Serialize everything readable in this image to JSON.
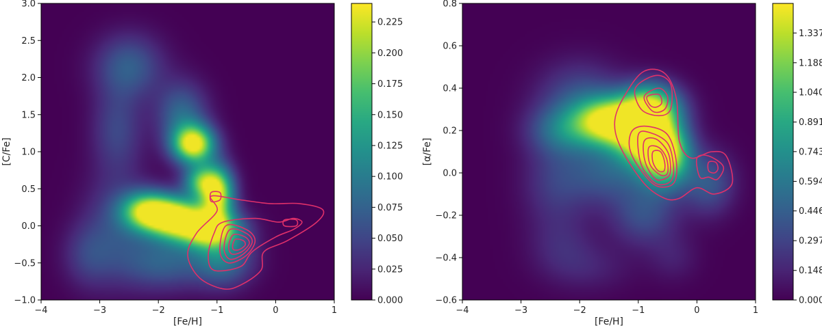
{
  "chart_data": [
    {
      "type": "heatmap",
      "title": "",
      "xlabel": "[Fe/H]",
      "ylabel": "[C/Fe]",
      "xlim": [
        -4,
        1
      ],
      "ylim": [
        -1,
        3
      ],
      "xticks": [
        "−4",
        "−3",
        "−2",
        "−1",
        "0",
        "1"
      ],
      "yticks": [
        "−1.0",
        "−0.5",
        "0.0",
        "0.5",
        "1.0",
        "1.5",
        "2.0",
        "2.5",
        "3.0"
      ],
      "colormap": "viridis",
      "colorbar": {
        "min": 0.0,
        "max": 0.24,
        "ticks": [
          0.0,
          0.025,
          0.05,
          0.075,
          0.1,
          0.125,
          0.15,
          0.175,
          0.2,
          0.225
        ],
        "tick_labels": [
          "0.000",
          "0.025",
          "0.050",
          "0.075",
          "0.100",
          "0.125",
          "0.150",
          "0.175",
          "0.200",
          "0.225"
        ]
      },
      "density_blobs": [
        {
          "x": -1.4,
          "y": 1.1,
          "sx": 0.25,
          "sy": 0.18,
          "a": 0.24
        },
        {
          "x": -1.0,
          "y": 0.45,
          "sx": 0.2,
          "sy": 0.25,
          "a": 0.23
        },
        {
          "x": -1.7,
          "y": 0.1,
          "sx": 0.35,
          "sy": 0.2,
          "a": 0.24
        },
        {
          "x": -1.1,
          "y": -0.05,
          "sx": 0.35,
          "sy": 0.18,
          "a": 0.22
        },
        {
          "x": -2.2,
          "y": 0.2,
          "sx": 0.3,
          "sy": 0.18,
          "a": 0.19
        },
        {
          "x": -1.6,
          "y": 1.5,
          "sx": 0.3,
          "sy": 0.3,
          "a": 0.08
        },
        {
          "x": -1.3,
          "y": 0.6,
          "sx": 0.2,
          "sy": 0.15,
          "a": 0.13
        },
        {
          "x": -2.5,
          "y": 2.15,
          "sx": 0.4,
          "sy": 0.3,
          "a": 0.07
        },
        {
          "x": -2.7,
          "y": 1.3,
          "sx": 0.3,
          "sy": 0.4,
          "a": 0.05
        },
        {
          "x": -2.7,
          "y": 0.0,
          "sx": 0.4,
          "sy": 0.5,
          "a": 0.05
        },
        {
          "x": -1.9,
          "y": -0.5,
          "sx": 0.5,
          "sy": 0.25,
          "a": 0.07
        },
        {
          "x": -0.9,
          "y": -0.45,
          "sx": 0.35,
          "sy": 0.25,
          "a": 0.09
        },
        {
          "x": -3.2,
          "y": -0.4,
          "sx": 0.3,
          "sy": 0.3,
          "a": 0.04
        }
      ],
      "contours": [
        [
          [
            -1.1,
            0.4
          ],
          [
            -0.6,
            0.35
          ],
          [
            -0.1,
            0.3
          ],
          [
            0.4,
            0.3
          ],
          [
            0.8,
            0.22
          ],
          [
            0.7,
            0.05
          ],
          [
            0.2,
            -0.2
          ],
          [
            -0.2,
            -0.35
          ],
          [
            -0.25,
            -0.6
          ],
          [
            -0.6,
            -0.8
          ],
          [
            -0.9,
            -0.85
          ],
          [
            -1.3,
            -0.7
          ],
          [
            -1.5,
            -0.4
          ],
          [
            -1.35,
            -0.1
          ],
          [
            -1.0,
            0.2
          ]
        ],
        [
          [
            -1.1,
            0.45
          ],
          [
            -0.95,
            0.45
          ],
          [
            -0.95,
            0.35
          ],
          [
            -1.1,
            0.33
          ]
        ],
        [
          [
            -0.9,
            0.05
          ],
          [
            -0.35,
            0.1
          ],
          [
            0.05,
            0.05
          ],
          [
            0.3,
            0.1
          ],
          [
            0.45,
            0.05
          ],
          [
            0.3,
            -0.05
          ],
          [
            0.0,
            -0.15
          ],
          [
            -0.4,
            -0.35
          ],
          [
            -0.6,
            -0.55
          ],
          [
            -1.05,
            -0.6
          ],
          [
            -1.15,
            -0.4
          ],
          [
            -1.05,
            -0.1
          ]
        ],
        [
          [
            0.15,
            0.08
          ],
          [
            0.35,
            0.08
          ],
          [
            0.35,
            0.0
          ],
          [
            0.15,
            0.0
          ]
        ],
        [
          [
            -0.85,
            0.0
          ],
          [
            -0.5,
            -0.05
          ],
          [
            -0.35,
            -0.2
          ],
          [
            -0.5,
            -0.4
          ],
          [
            -0.8,
            -0.5
          ],
          [
            -0.95,
            -0.35
          ]
        ],
        [
          [
            -0.78,
            -0.05
          ],
          [
            -0.5,
            -0.1
          ],
          [
            -0.4,
            -0.22
          ],
          [
            -0.55,
            -0.38
          ],
          [
            -0.78,
            -0.45
          ],
          [
            -0.88,
            -0.3
          ]
        ],
        [
          [
            -0.72,
            -0.12
          ],
          [
            -0.52,
            -0.15
          ],
          [
            -0.45,
            -0.24
          ],
          [
            -0.58,
            -0.35
          ],
          [
            -0.75,
            -0.38
          ],
          [
            -0.8,
            -0.27
          ]
        ],
        [
          [
            -0.68,
            -0.18
          ],
          [
            -0.55,
            -0.2
          ],
          [
            -0.52,
            -0.26
          ],
          [
            -0.62,
            -0.32
          ],
          [
            -0.72,
            -0.32
          ],
          [
            -0.73,
            -0.25
          ]
        ]
      ],
      "contour_color": "#e0306a"
    },
    {
      "type": "heatmap",
      "title": "",
      "xlabel": "[Fe/H]",
      "ylabel": "[α/Fe]",
      "xlim": [
        -4,
        1
      ],
      "ylim": [
        -0.6,
        0.8
      ],
      "xticks": [
        "−4",
        "−3",
        "−2",
        "−1",
        "0",
        "1"
      ],
      "yticks": [
        "−0.6",
        "−0.4",
        "−0.2",
        "0.0",
        "0.2",
        "0.4",
        "0.6",
        "0.8"
      ],
      "colormap": "viridis",
      "colorbar": {
        "min": 0.0,
        "max": 1.485,
        "ticks": [
          0.0,
          0.148,
          0.297,
          0.446,
          0.594,
          0.743,
          0.891,
          1.04,
          1.188,
          1.337
        ],
        "tick_labels": [
          "0.000",
          "0.148",
          "0.297",
          "0.446",
          "0.594",
          "0.743",
          "0.891",
          "1.040",
          "1.188",
          "1.337"
        ]
      },
      "density_blobs": [
        {
          "x": -1.5,
          "y": 0.24,
          "sx": 0.4,
          "sy": 0.08,
          "a": 1.4
        },
        {
          "x": -0.8,
          "y": 0.3,
          "sx": 0.35,
          "sy": 0.08,
          "a": 1.45
        },
        {
          "x": -0.55,
          "y": 0.08,
          "sx": 0.3,
          "sy": 0.1,
          "a": 1.4
        },
        {
          "x": -0.9,
          "y": 0.15,
          "sx": 0.35,
          "sy": 0.08,
          "a": 1.1
        },
        {
          "x": -2.3,
          "y": 0.2,
          "sx": 0.4,
          "sy": 0.08,
          "a": 0.45
        },
        {
          "x": -2.0,
          "y": 0.35,
          "sx": 0.5,
          "sy": 0.12,
          "a": 0.35
        },
        {
          "x": -1.5,
          "y": 0.0,
          "sx": 0.5,
          "sy": 0.1,
          "a": 0.4
        },
        {
          "x": -2.4,
          "y": -0.05,
          "sx": 0.4,
          "sy": 0.15,
          "a": 0.25
        },
        {
          "x": -0.9,
          "y": -0.2,
          "sx": 0.4,
          "sy": 0.1,
          "a": 0.35
        },
        {
          "x": -2.3,
          "y": -0.35,
          "sx": 0.4,
          "sy": 0.1,
          "a": 0.15
        },
        {
          "x": 0.2,
          "y": -0.05,
          "sx": 0.3,
          "sy": 0.1,
          "a": 0.4
        },
        {
          "x": -1.8,
          "y": -0.45,
          "sx": 0.5,
          "sy": 0.08,
          "a": 0.12
        },
        {
          "x": -0.4,
          "y": -0.4,
          "sx": 0.3,
          "sy": 0.08,
          "a": 0.12
        }
      ],
      "contours": [
        [
          [
            -1.2,
            0.38
          ],
          [
            -0.9,
            0.48
          ],
          [
            -0.55,
            0.47
          ],
          [
            -0.35,
            0.35
          ],
          [
            -0.3,
            0.15
          ],
          [
            -0.1,
            0.07
          ],
          [
            0.25,
            0.1
          ],
          [
            0.5,
            0.08
          ],
          [
            0.6,
            -0.05
          ],
          [
            0.3,
            -0.1
          ],
          [
            0.0,
            -0.07
          ],
          [
            -0.3,
            -0.12
          ],
          [
            -0.55,
            -0.12
          ],
          [
            -0.9,
            -0.05
          ],
          [
            -1.3,
            0.12
          ],
          [
            -1.4,
            0.25
          ]
        ],
        [
          [
            -1.05,
            0.4
          ],
          [
            -0.7,
            0.46
          ],
          [
            -0.45,
            0.42
          ],
          [
            -0.45,
            0.3
          ],
          [
            -0.65,
            0.27
          ],
          [
            -0.95,
            0.3
          ]
        ],
        [
          [
            -0.9,
            0.36
          ],
          [
            -0.65,
            0.4
          ],
          [
            -0.5,
            0.36
          ],
          [
            -0.55,
            0.3
          ],
          [
            -0.75,
            0.29
          ]
        ],
        [
          [
            -0.85,
            0.36
          ],
          [
            -0.65,
            0.37
          ],
          [
            -0.6,
            0.33
          ],
          [
            -0.7,
            0.31
          ],
          [
            -0.8,
            0.32
          ]
        ],
        [
          [
            0.0,
            0.07
          ],
          [
            0.2,
            0.08
          ],
          [
            0.45,
            0.03
          ],
          [
            0.35,
            -0.03
          ],
          [
            0.2,
            -0.02
          ],
          [
            0.05,
            -0.02
          ]
        ],
        [
          [
            0.2,
            0.05
          ],
          [
            0.32,
            0.05
          ],
          [
            0.36,
            0.02
          ],
          [
            0.3,
            0.0
          ],
          [
            0.2,
            0.01
          ]
        ],
        [
          [
            -1.1,
            0.2
          ],
          [
            -0.85,
            0.22
          ],
          [
            -0.5,
            0.18
          ],
          [
            -0.35,
            0.05
          ],
          [
            -0.4,
            -0.05
          ],
          [
            -0.7,
            -0.06
          ],
          [
            -1.0,
            0.03
          ],
          [
            -1.15,
            0.12
          ]
        ],
        [
          [
            -1.0,
            0.18
          ],
          [
            -0.8,
            0.19
          ],
          [
            -0.5,
            0.14
          ],
          [
            -0.4,
            0.03
          ],
          [
            -0.45,
            -0.04
          ],
          [
            -0.7,
            -0.05
          ],
          [
            -0.95,
            0.04
          ]
        ],
        [
          [
            -0.9,
            0.15
          ],
          [
            -0.7,
            0.16
          ],
          [
            -0.5,
            0.1
          ],
          [
            -0.45,
            0.02
          ],
          [
            -0.5,
            -0.02
          ],
          [
            -0.7,
            -0.03
          ],
          [
            -0.88,
            0.05
          ]
        ],
        [
          [
            -0.82,
            0.12
          ],
          [
            -0.65,
            0.12
          ],
          [
            -0.52,
            0.07
          ],
          [
            -0.5,
            0.0
          ],
          [
            -0.62,
            -0.01
          ],
          [
            -0.8,
            0.04
          ]
        ],
        [
          [
            -0.75,
            0.1
          ],
          [
            -0.62,
            0.1
          ],
          [
            -0.55,
            0.05
          ],
          [
            -0.56,
            0.01
          ],
          [
            -0.66,
            0.01
          ],
          [
            -0.75,
            0.05
          ]
        ]
      ],
      "contour_color": "#e0306a"
    }
  ]
}
